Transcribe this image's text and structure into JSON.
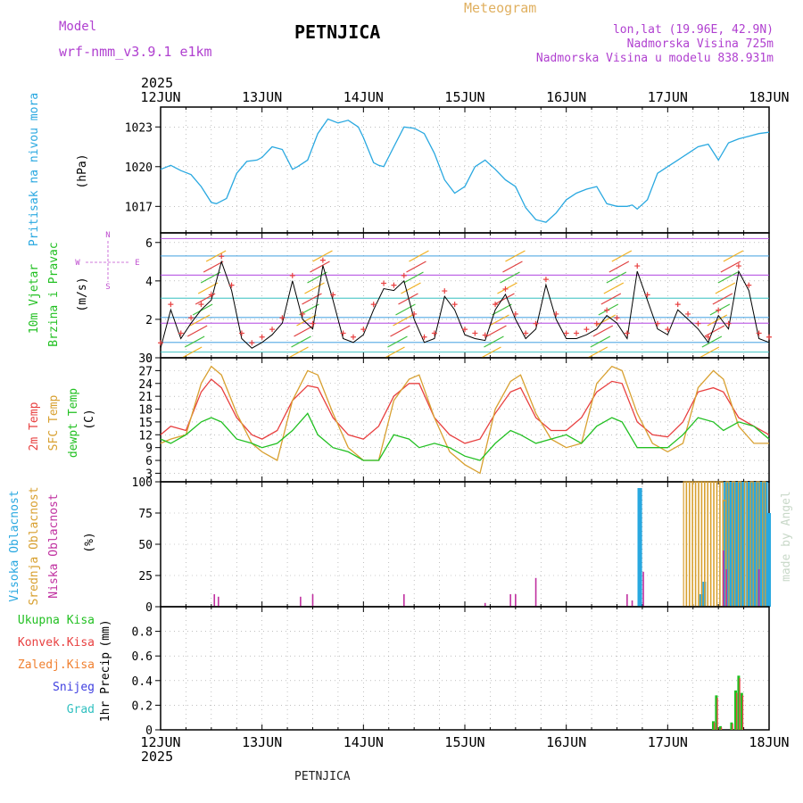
{
  "header": {
    "model_label": "Model",
    "model_name": "wrf-nmm_v3.9.1 e1km",
    "station": "PETNJICA",
    "meteogram": "Meteogram",
    "lonlat": "lon,lat (19.96E, 42.9N)",
    "altitude": "Nadmorska Visina 725m",
    "model_altitude": "Nadmorska Visina u modelu 838.931m",
    "year_top": "2025",
    "year_bottom": "2025",
    "footer_station": "PETNJICA",
    "credit": "made by Angel"
  },
  "colors": {
    "pressure": "#29a8e0",
    "wind_label": "#22c022",
    "temp2m": "#e84040",
    "sfc": "#d8a030",
    "dewpt": "#22c022",
    "high_cloud": "#29a8e0",
    "mid_cloud": "#d8a030",
    "low_cloud": "#c030a0",
    "total_precip": "#22c022",
    "conv_precip": "#e84040",
    "freezing": "#f08030",
    "snow": "#4040e0",
    "hail": "#30c0c0",
    "axis_label": "#000000",
    "header_purple": "#b040d0",
    "meteogram_gold": "#e0b060"
  },
  "chart_data": [
    {
      "id": "pressure",
      "type": "line",
      "side_label": "Pritisak na nivou mora",
      "unit": "(hPa)",
      "x_labels": [
        "12JUN",
        "13JUN",
        "14JUN",
        "15JUN",
        "16JUN",
        "17JUN",
        "18JUN"
      ],
      "ylim": [
        1015,
        1024.5
      ],
      "yticks": [
        1017,
        1020,
        1023
      ],
      "series": [
        {
          "x": [
            0,
            0.1,
            0.2,
            0.3,
            0.4,
            0.5,
            0.55,
            0.65,
            0.75,
            0.85,
            0.95,
            1.0,
            1.1,
            1.2,
            1.3,
            1.35,
            1.45,
            1.55,
            1.65,
            1.75,
            1.85,
            1.95,
            2.0,
            2.1,
            2.15,
            2.2,
            2.3,
            2.4,
            2.5,
            2.6,
            2.7,
            2.8,
            2.9,
            3.0,
            3.1,
            3.2,
            3.3,
            3.4,
            3.5,
            3.6,
            3.7,
            3.8,
            3.9,
            4.0,
            4.1,
            4.2,
            4.3,
            4.4,
            4.5,
            4.6,
            4.65,
            4.7,
            4.8,
            4.9,
            5.0,
            5.1,
            5.2,
            5.3,
            5.4,
            5.5,
            5.6,
            5.7,
            5.8,
            5.9,
            6.0
          ],
          "y": [
            1019.8,
            1020.1,
            1019.7,
            1019.4,
            1018.5,
            1017.3,
            1017.2,
            1017.6,
            1019.5,
            1020.4,
            1020.5,
            1020.7,
            1021.5,
            1021.3,
            1019.8,
            1020.0,
            1020.5,
            1022.5,
            1023.6,
            1023.3,
            1023.5,
            1023.0,
            1022.2,
            1020.3,
            1020.1,
            1020.0,
            1021.5,
            1023.0,
            1022.9,
            1022.5,
            1021.0,
            1019.0,
            1018.0,
            1018.5,
            1020.0,
            1020.5,
            1019.8,
            1019.0,
            1018.5,
            1016.9,
            1016.0,
            1015.8,
            1016.5,
            1017.5,
            1018.0,
            1018.3,
            1018.5,
            1017.2,
            1017.0,
            1017.0,
            1017.1,
            1016.8,
            1017.5,
            1019.5,
            1020.0,
            1020.5,
            1021.0,
            1021.5,
            1021.7,
            1020.5,
            1021.8,
            1022.1,
            1022.3,
            1022.5,
            1022.6
          ]
        }
      ]
    },
    {
      "id": "wind",
      "type": "line",
      "side_label_1": "10m Vjetar",
      "side_label_2": "Brzina i Pravac",
      "unit": "(m/s)",
      "compass_n": "N",
      "compass_w": "W",
      "compass_e": "E",
      "compass_s": "S",
      "ylim": [
        0,
        6.5
      ],
      "yticks": [
        0,
        2,
        4,
        6
      ],
      "series": [
        {
          "name": "",
          "x": [
            0,
            0.1,
            0.2,
            0.3,
            0.4,
            0.5,
            0.6,
            0.7,
            0.8,
            0.9,
            1.0,
            1.1,
            1.2,
            1.3,
            1.4,
            1.5,
            1.6,
            1.7,
            1.8,
            1.9,
            2.0,
            2.1,
            2.2,
            2.3,
            2.4,
            2.5,
            2.6,
            2.7,
            2.8,
            2.9,
            3.0,
            3.1,
            3.2,
            3.3,
            3.4,
            3.5,
            3.6,
            3.7,
            3.8,
            3.9,
            4.0,
            4.1,
            4.2,
            4.3,
            4.4,
            4.5,
            4.6,
            4.7,
            4.8,
            4.9,
            5.0,
            5.1,
            5.2,
            5.3,
            5.4,
            5.5,
            5.6,
            5.7,
            5.8,
            5.9,
            6.0
          ],
          "y": [
            0.5,
            2.5,
            1.0,
            1.8,
            2.5,
            3.0,
            5.0,
            3.5,
            1.0,
            0.5,
            0.8,
            1.2,
            1.8,
            4.0,
            2.0,
            1.5,
            4.8,
            3.0,
            1.0,
            0.8,
            1.2,
            2.5,
            3.6,
            3.5,
            4.0,
            2.0,
            0.8,
            1.0,
            3.2,
            2.5,
            1.2,
            1.0,
            0.9,
            2.5,
            3.3,
            2.0,
            1.0,
            1.5,
            3.8,
            2.0,
            1.0,
            1.0,
            1.2,
            1.5,
            2.2,
            1.8,
            1.0,
            4.5,
            3.0,
            1.5,
            1.2,
            2.5,
            2.0,
            1.5,
            0.8,
            2.2,
            1.5,
            4.5,
            3.5,
            1.0,
            0.8
          ]
        }
      ]
    },
    {
      "id": "temperature",
      "type": "line",
      "side_label_1": "2m Temp",
      "side_label_2": "SFC Temp",
      "side_label_3": "dewpt Temp",
      "unit": "(C)",
      "ylim": [
        1,
        30
      ],
      "yticks": [
        3,
        6,
        9,
        12,
        15,
        18,
        21,
        24,
        27,
        30
      ],
      "series": [
        {
          "name": "2m Temp",
          "x": [
            0,
            0.1,
            0.25,
            0.4,
            0.5,
            0.6,
            0.75,
            0.9,
            1.0,
            1.15,
            1.3,
            1.45,
            1.55,
            1.7,
            1.85,
            2.0,
            2.15,
            2.3,
            2.45,
            2.55,
            2.7,
            2.85,
            3.0,
            3.15,
            3.3,
            3.45,
            3.55,
            3.7,
            3.85,
            4.0,
            4.15,
            4.3,
            4.45,
            4.55,
            4.7,
            4.85,
            5.0,
            5.15,
            5.3,
            5.45,
            5.55,
            5.7,
            5.85,
            6.0
          ],
          "y": [
            12,
            14,
            13,
            22,
            25,
            23,
            16,
            12,
            11,
            13,
            20,
            23.5,
            23,
            16,
            12,
            11,
            14,
            21,
            24,
            24,
            16,
            12,
            10,
            11,
            17,
            22,
            23,
            16,
            13,
            13,
            16,
            22,
            24.5,
            24,
            15,
            12,
            11.5,
            15,
            22,
            23,
            22,
            16,
            14,
            12
          ]
        },
        {
          "name": "SFC Temp",
          "x": [
            0,
            0.1,
            0.25,
            0.4,
            0.5,
            0.6,
            0.75,
            0.9,
            1.0,
            1.15,
            1.3,
            1.45,
            1.55,
            1.7,
            1.85,
            2.0,
            2.15,
            2.3,
            2.45,
            2.55,
            2.7,
            2.85,
            3.0,
            3.15,
            3.3,
            3.45,
            3.55,
            3.7,
            3.85,
            4.0,
            4.15,
            4.3,
            4.45,
            4.55,
            4.7,
            4.85,
            5.0,
            5.15,
            5.3,
            5.45,
            5.55,
            5.7,
            5.85,
            6.0
          ],
          "y": [
            10,
            11,
            12,
            24,
            28,
            26,
            17,
            10,
            8,
            6,
            20,
            27,
            26,
            17,
            9,
            6,
            6,
            20,
            25,
            26,
            16,
            8,
            5,
            3,
            18,
            24.5,
            26,
            17,
            11,
            9,
            10,
            24,
            28,
            27,
            17,
            10,
            8,
            10,
            23,
            27,
            25,
            14,
            10,
            10
          ]
        },
        {
          "name": "dewpt Temp",
          "x": [
            0,
            0.1,
            0.25,
            0.4,
            0.5,
            0.6,
            0.75,
            0.9,
            1.0,
            1.15,
            1.3,
            1.45,
            1.55,
            1.7,
            1.85,
            2.0,
            2.15,
            2.3,
            2.45,
            2.55,
            2.7,
            2.85,
            3.0,
            3.15,
            3.3,
            3.45,
            3.55,
            3.7,
            3.85,
            4.0,
            4.15,
            4.3,
            4.45,
            4.55,
            4.7,
            4.85,
            5.0,
            5.15,
            5.3,
            5.45,
            5.55,
            5.7,
            5.85,
            6.0
          ],
          "y": [
            11,
            10,
            12,
            15,
            16,
            15,
            11,
            10,
            9,
            10,
            13,
            17,
            12,
            9,
            8,
            6,
            6,
            12,
            11,
            9,
            10,
            9,
            7,
            6,
            10,
            13,
            12,
            10,
            11,
            12,
            10,
            14,
            16,
            15,
            9,
            9,
            9,
            12,
            16,
            15,
            13,
            15,
            14,
            11
          ]
        }
      ]
    },
    {
      "id": "clouds",
      "type": "bar",
      "side_label_1": "Visoka Oblacnost",
      "side_label_2": "Srednja Oblacnost",
      "side_label_3": "Niska Oblacnost",
      "unit": "(%)",
      "ylim": [
        0,
        100
      ],
      "yticks": [
        0,
        25,
        50,
        75,
        100
      ],
      "series": [
        {
          "name": "Visoka Oblacnost",
          "x": [
            4.72,
            4.73,
            5.33,
            5.36,
            5.57,
            5.6,
            5.63,
            5.66,
            5.69,
            5.72,
            5.75,
            5.79,
            5.82,
            5.85,
            5.88,
            5.91,
            5.94,
            5.97,
            6.0
          ],
          "values": [
            95,
            95,
            10,
            20,
            100,
            100,
            100,
            100,
            100,
            100,
            100,
            100,
            100,
            100,
            100,
            100,
            100,
            100,
            75
          ]
        },
        {
          "name": "Srednja Oblacnost",
          "x": [
            5.17,
            5.2,
            5.23,
            5.26,
            5.29,
            5.32,
            5.35,
            5.38,
            5.41,
            5.44,
            5.47,
            5.5,
            5.53,
            5.56,
            5.59,
            5.65,
            5.71,
            5.77,
            5.83,
            5.89,
            5.95
          ],
          "values": [
            100,
            100,
            100,
            100,
            100,
            100,
            100,
            100,
            100,
            100,
            100,
            100,
            100,
            85,
            100,
            100,
            100,
            100,
            100,
            100,
            100
          ]
        },
        {
          "name": "Niska Oblacnost",
          "x": [
            0.53,
            0.57,
            1.38,
            1.5,
            2.4,
            3.2,
            3.45,
            3.5,
            3.7,
            4.6,
            4.65,
            4.76,
            5.55,
            5.58,
            5.9
          ],
          "values": [
            10,
            8,
            8,
            10,
            10,
            3,
            10,
            10,
            23,
            10,
            5,
            28,
            45,
            30,
            30
          ]
        }
      ]
    },
    {
      "id": "precip",
      "type": "bar",
      "side_label_1": "Ukupna Kisa",
      "side_label_2": "Konvek.Kisa",
      "side_label_3": "Zaledj.Kisa",
      "side_label_4": "Snijeg",
      "side_label_5": "Grad",
      "unit_1": "1hr Precip",
      "unit_2": "(mm)",
      "ylim": [
        0,
        1.0
      ],
      "yticks": [
        0,
        0.2,
        0.4,
        0.6,
        0.8
      ],
      "series": [
        {
          "name": "Ukupna Kisa",
          "x": [
            5.45,
            5.48,
            5.52,
            5.63,
            5.67,
            5.7,
            5.73
          ],
          "values": [
            0.07,
            0.28,
            0.03,
            0.06,
            0.32,
            0.44,
            0.3
          ]
        },
        {
          "name": "Konvek.Kisa",
          "x": [
            5.45,
            5.48,
            5.52,
            5.63,
            5.67,
            5.7,
            5.73
          ],
          "values": [
            0.06,
            0.26,
            0.02,
            0.05,
            0.3,
            0.42,
            0.28
          ]
        }
      ]
    }
  ]
}
